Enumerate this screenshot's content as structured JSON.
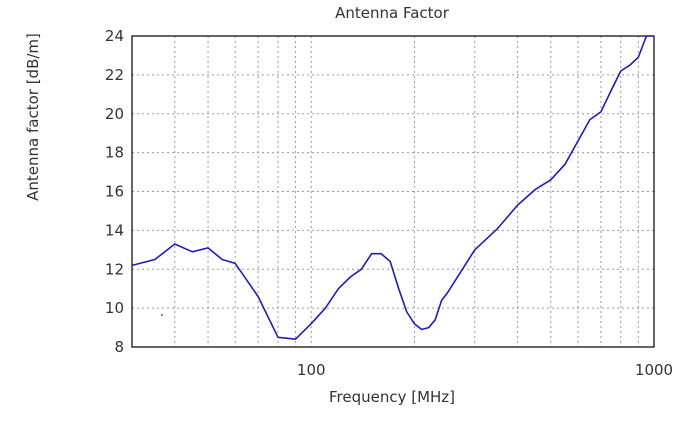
{
  "chart_data": {
    "type": "line",
    "title": "Antenna Factor",
    "xlabel": "Frequency [MHz]",
    "ylabel": "Antenna factor [dB/m]",
    "xscale": "log",
    "xlim": [
      30,
      1000
    ],
    "ylim": [
      8,
      24
    ],
    "xticks": [
      100,
      1000
    ],
    "xtick_labels": [
      "100",
      "1000"
    ],
    "yticks": [
      8,
      10,
      12,
      14,
      16,
      18,
      20,
      22,
      24
    ],
    "ytick_labels": [
      "8",
      "10",
      "12",
      "14",
      "16",
      "18",
      "20",
      "22",
      "24"
    ],
    "grid": true,
    "legend": "none",
    "color": "#1f1fb0",
    "series": [
      {
        "x": [
          30,
          35,
          40,
          45,
          50,
          55,
          60,
          70,
          80,
          90,
          100,
          110,
          120,
          130,
          140,
          150,
          160,
          170,
          180,
          190,
          200,
          210,
          220,
          230,
          240,
          250,
          300,
          350,
          400,
          450,
          500,
          550,
          600,
          650,
          700,
          750,
          800,
          850,
          900,
          950,
          1000
        ],
        "y": [
          12.2,
          12.5,
          13.3,
          12.9,
          13.1,
          12.5,
          12.3,
          10.6,
          8.5,
          8.4,
          9.2,
          10.0,
          11.0,
          11.6,
          12.0,
          12.8,
          12.8,
          12.4,
          11.0,
          9.8,
          9.2,
          8.9,
          9.0,
          9.4,
          10.4,
          10.8,
          13.0,
          14.1,
          15.3,
          16.1,
          16.6,
          17.4,
          18.6,
          19.7,
          20.1,
          21.2,
          22.2,
          22.5,
          22.9,
          24.0,
          24.0
        ]
      }
    ]
  }
}
